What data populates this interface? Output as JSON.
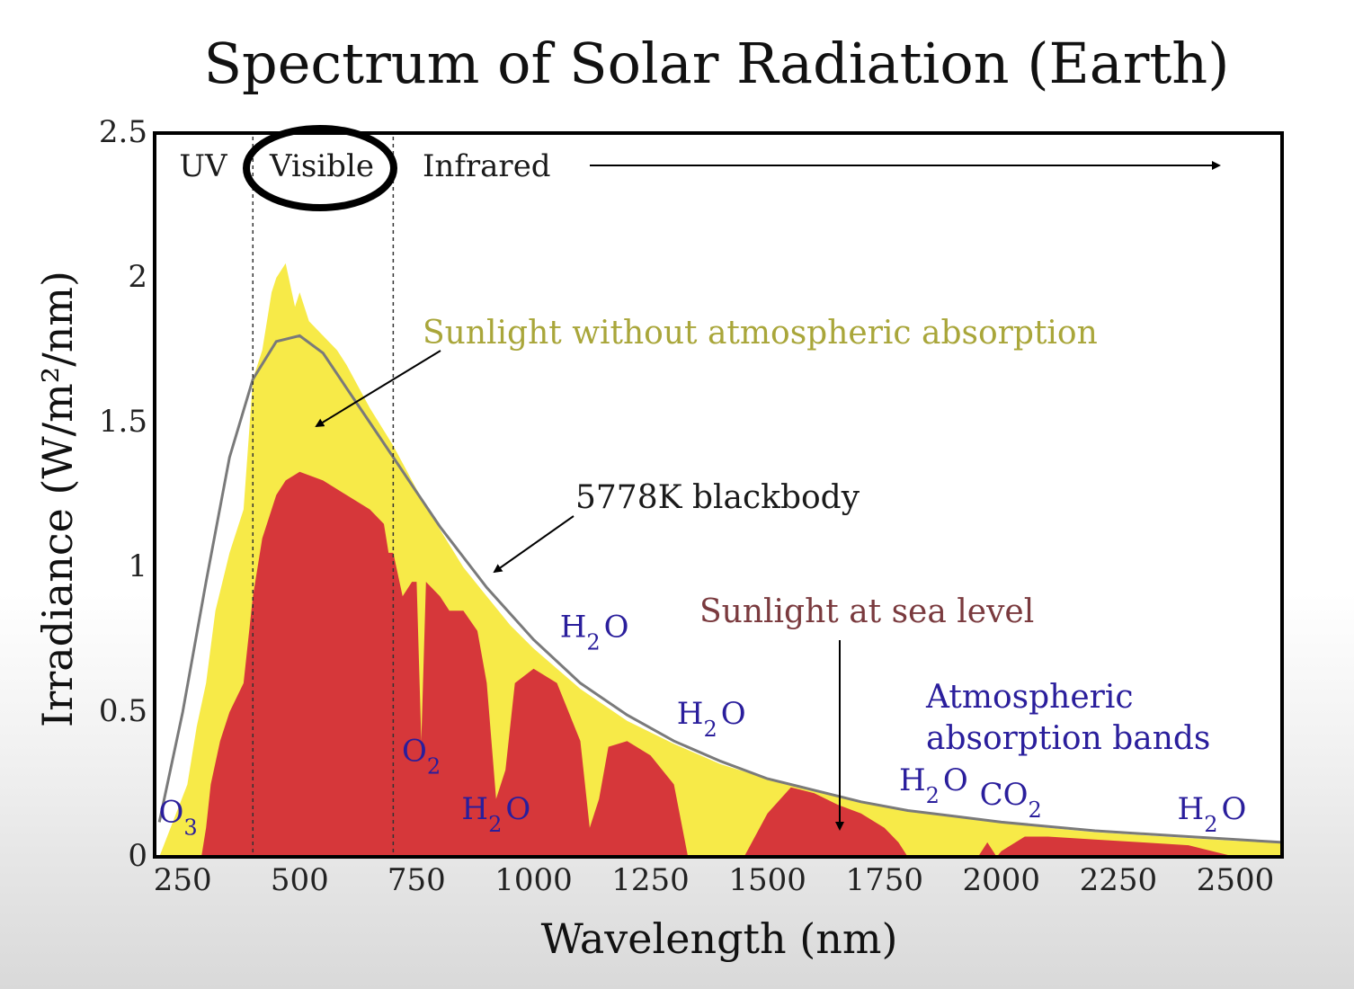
{
  "chart_data": {
    "type": "area",
    "title": "Spectrum of Solar Radiation (Earth)",
    "xlabel": "Wavelength (nm)",
    "ylabel": "Irradiance (W/m²/nm)",
    "xlim": [
      190,
      2600
    ],
    "ylim": [
      0,
      2.5
    ],
    "xticks": [
      250,
      500,
      750,
      1000,
      1250,
      1500,
      1750,
      2000,
      2250,
      2500
    ],
    "yticks": [
      0,
      0.5,
      1,
      1.5,
      2,
      2.5
    ],
    "ytick_labels": [
      "0",
      "0.5",
      "1",
      "1.5",
      "2",
      "2.5"
    ],
    "bands": [
      {
        "label": "UV"
      },
      {
        "label": "Visible",
        "from": 400,
        "to": 700,
        "highlighted": true
      },
      {
        "label": "Infrared"
      }
    ],
    "series": [
      {
        "name": "Sunlight without atmospheric absorption",
        "color": "#f7ea48",
        "x": [
          200,
          260,
          280,
          300,
          320,
          350,
          380,
          400,
          420,
          440,
          450,
          470,
          490,
          500,
          520,
          550,
          580,
          600,
          650,
          700,
          750,
          800,
          850,
          900,
          950,
          1000,
          1100,
          1200,
          1300,
          1400,
          1500,
          1600,
          1700,
          1800,
          1900,
          2000,
          2100,
          2200,
          2300,
          2400,
          2500,
          2600
        ],
        "y": [
          0.0,
          0.25,
          0.45,
          0.6,
          0.85,
          1.05,
          1.2,
          1.65,
          1.75,
          1.95,
          2.0,
          2.05,
          1.9,
          1.95,
          1.85,
          1.8,
          1.75,
          1.7,
          1.55,
          1.42,
          1.27,
          1.13,
          1.0,
          0.9,
          0.8,
          0.72,
          0.58,
          0.47,
          0.39,
          0.32,
          0.27,
          0.23,
          0.19,
          0.16,
          0.14,
          0.12,
          0.1,
          0.085,
          0.075,
          0.065,
          0.055,
          0.05
        ]
      },
      {
        "name": "Sunlight at sea level",
        "color": "#d6373a",
        "x": [
          290,
          300,
          310,
          330,
          350,
          380,
          400,
          420,
          440,
          450,
          470,
          500,
          550,
          600,
          650,
          680,
          690,
          700,
          720,
          740,
          750,
          760,
          770,
          800,
          820,
          850,
          880,
          900,
          920,
          940,
          960,
          1000,
          1050,
          1100,
          1120,
          1140,
          1160,
          1200,
          1250,
          1300,
          1330,
          1350,
          1400,
          1450,
          1500,
          1550,
          1600,
          1650,
          1700,
          1750,
          1780,
          1800,
          1950,
          1970,
          1990,
          2000,
          2050,
          2100,
          2200,
          2300,
          2400,
          2450,
          2500
        ],
        "y": [
          0.0,
          0.1,
          0.25,
          0.4,
          0.5,
          0.6,
          0.9,
          1.1,
          1.2,
          1.25,
          1.3,
          1.33,
          1.3,
          1.25,
          1.2,
          1.15,
          1.05,
          1.05,
          0.9,
          0.95,
          0.95,
          0.4,
          0.95,
          0.9,
          0.85,
          0.85,
          0.78,
          0.6,
          0.2,
          0.3,
          0.6,
          0.65,
          0.6,
          0.4,
          0.1,
          0.2,
          0.38,
          0.4,
          0.35,
          0.25,
          0.0,
          0.0,
          0.0,
          0.0,
          0.15,
          0.24,
          0.22,
          0.18,
          0.15,
          0.1,
          0.05,
          0.0,
          0.0,
          0.05,
          0.0,
          0.02,
          0.07,
          0.07,
          0.06,
          0.05,
          0.04,
          0.02,
          0.0
        ]
      },
      {
        "name": "5778K blackbody",
        "color": "#7a7a7a",
        "x": [
          200,
          250,
          300,
          350,
          400,
          450,
          500,
          550,
          600,
          650,
          700,
          750,
          800,
          900,
          1000,
          1100,
          1200,
          1300,
          1400,
          1500,
          1600,
          1700,
          1800,
          1900,
          2000,
          2200,
          2400,
          2600
        ],
        "y": [
          0.12,
          0.5,
          0.95,
          1.38,
          1.65,
          1.78,
          1.8,
          1.74,
          1.62,
          1.5,
          1.38,
          1.26,
          1.14,
          0.93,
          0.75,
          0.6,
          0.49,
          0.4,
          0.33,
          0.27,
          0.23,
          0.19,
          0.16,
          0.14,
          0.12,
          0.09,
          0.07,
          0.05
        ]
      }
    ],
    "annotations": {
      "without_atmos": "Sunlight without atmospheric absorption",
      "blackbody": "5778K blackbody",
      "sea_level": "Sunlight at sea level",
      "atmos_bands_1": "Atmospheric",
      "atmos_bands_2": "absorption bands"
    },
    "absorbers": [
      {
        "label": "O",
        "sub": "3",
        "x": 240,
        "y": 0.12
      },
      {
        "label": "O",
        "sub": "2",
        "x": 760,
        "y": 0.33
      },
      {
        "label": "H",
        "sub": "2",
        "tail": "O",
        "x": 920,
        "y": 0.13
      },
      {
        "label": "H",
        "sub": "2",
        "tail": "O",
        "x": 1130,
        "y": 0.76
      },
      {
        "label": "H",
        "sub": "2",
        "tail": "O",
        "x": 1380,
        "y": 0.46
      },
      {
        "label": "H",
        "sub": "2",
        "tail": "O",
        "x": 1855,
        "y": 0.23
      },
      {
        "label": "CO",
        "sub": "2",
        "x": 2020,
        "y": 0.18
      },
      {
        "label": "H",
        "sub": "2",
        "tail": "O",
        "x": 2450,
        "y": 0.13
      }
    ],
    "legend": "none",
    "grid": false
  }
}
